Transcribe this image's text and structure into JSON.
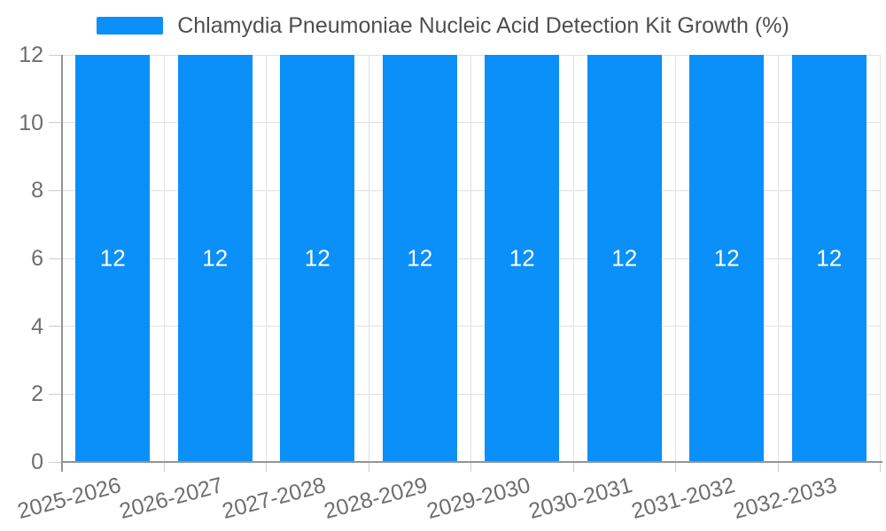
{
  "legend": {
    "label": "Chlamydia Pneumoniae Nucleic Acid Detection Kit Growth (%)",
    "swatch_color": "#0a90f8"
  },
  "chart_data": {
    "type": "bar",
    "title": "",
    "xlabel": "",
    "ylabel": "",
    "categories": [
      "2025-2026",
      "2026-2027",
      "2027-2028",
      "2028-2029",
      "2029-2030",
      "2030-2031",
      "2031-2032",
      "2032-2033"
    ],
    "series": [
      {
        "name": "Chlamydia Pneumoniae Nucleic Acid Detection Kit Growth (%)",
        "values": [
          12,
          12,
          12,
          12,
          12,
          12,
          12,
          12
        ],
        "bar_labels": [
          "12",
          "12",
          "12",
          "12",
          "12",
          "12",
          "12",
          "12"
        ]
      }
    ],
    "ylim": [
      0,
      12
    ],
    "yticks": [
      0,
      2,
      4,
      6,
      8,
      10,
      12
    ],
    "grid": true,
    "legend_position": "top",
    "x_label_rotation_deg": -15,
    "bar_label_position": "inside-middle"
  },
  "colors": {
    "bar": "#0a90f8",
    "bar_label": "#ffffff",
    "axis_line": "#949494",
    "gridline": "#e1e1e1",
    "tick": "#cccccc",
    "tick_label": "#6e6e6e",
    "legend_text": "#4f4f4f",
    "background": "#ffffff"
  }
}
